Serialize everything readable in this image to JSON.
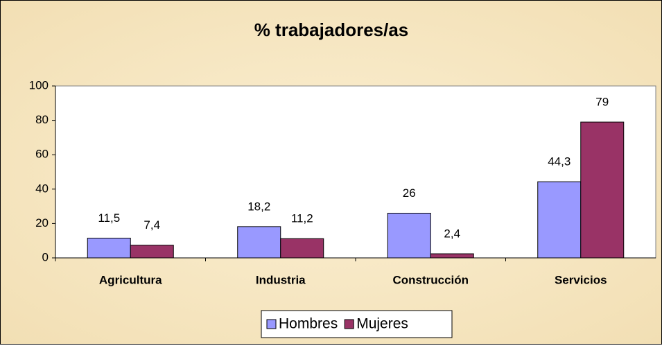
{
  "chart_data": {
    "type": "bar",
    "title": "% trabajadores/as",
    "categories": [
      "Agricultura",
      "Industria",
      "Construcción",
      "Servicios"
    ],
    "series": [
      {
        "name": "Hombres",
        "color": "#9999ff",
        "values": [
          11.5,
          18.2,
          26,
          44.3
        ],
        "value_labels": [
          "11,5",
          "18,2",
          "26",
          "44,3"
        ]
      },
      {
        "name": "Mujeres",
        "color": "#993366",
        "values": [
          7.4,
          11.2,
          2.4,
          79
        ],
        "value_labels": [
          "7,4",
          "11,2",
          "2,4",
          "79"
        ]
      }
    ],
    "ylim": [
      0,
      100
    ],
    "yticks": [
      0,
      20,
      40,
      60,
      80,
      100
    ],
    "grid": false,
    "legend": "bottom"
  }
}
